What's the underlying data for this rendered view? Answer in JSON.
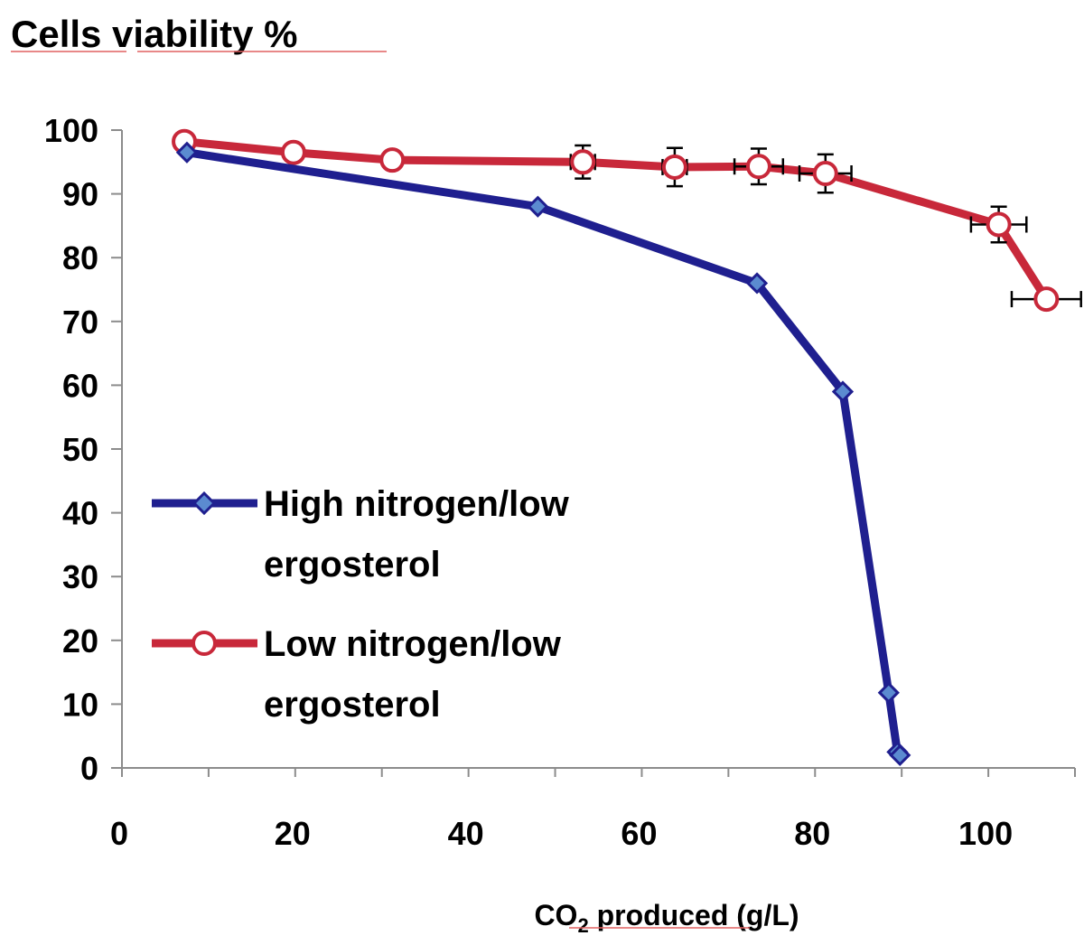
{
  "chart_data": {
    "type": "line",
    "title": "Cells viability %",
    "xlabel": {
      "prefix": "CO",
      "subscript": "2",
      "suffix": " produced (g/L)"
    },
    "ylabel": "",
    "xlim": [
      0,
      110
    ],
    "ylim": [
      0,
      100
    ],
    "xticks": [
      0,
      20,
      40,
      60,
      80,
      100
    ],
    "yticks": [
      0,
      10,
      20,
      30,
      40,
      50,
      60,
      70,
      80,
      90,
      100
    ],
    "legend_position": "middle-left",
    "series": [
      {
        "name": "High nitrogen/low ergosterol",
        "legend_lines": [
          "High nitrogen/low",
          "ergosterol"
        ],
        "color": "#1F1F8F",
        "marker": "diamond",
        "marker_fill": "#5B8BD0",
        "x": [
          7.5,
          48,
          73.3,
          83.2,
          88.5,
          89.5,
          89.8
        ],
        "y": [
          96.5,
          88,
          76,
          59,
          11.8,
          2.5,
          2
        ],
        "x_err": [
          0,
          0,
          0,
          0,
          0,
          0,
          0
        ],
        "y_err": [
          0,
          0,
          0,
          0,
          0,
          0,
          0
        ]
      },
      {
        "name": "Low nitrogen/low ergosterol",
        "legend_lines": [
          "Low nitrogen/low",
          "ergosterol"
        ],
        "color": "#C8283A",
        "marker": "circle",
        "marker_fill": "#FFFFFF",
        "x": [
          7.2,
          19.8,
          31.2,
          53.2,
          63.8,
          73.5,
          81.2,
          101.2,
          106.7
        ],
        "y": [
          98.2,
          96.5,
          95.3,
          95,
          94.2,
          94.3,
          93.2,
          85.2,
          73.5
        ],
        "x_err": [
          0,
          0,
          0,
          1.4,
          1.4,
          2.8,
          3.0,
          3.2,
          4.0
        ],
        "y_err": [
          0,
          1.2,
          1.0,
          2.6,
          3.0,
          2.8,
          3.0,
          2.8,
          0
        ]
      }
    ]
  }
}
